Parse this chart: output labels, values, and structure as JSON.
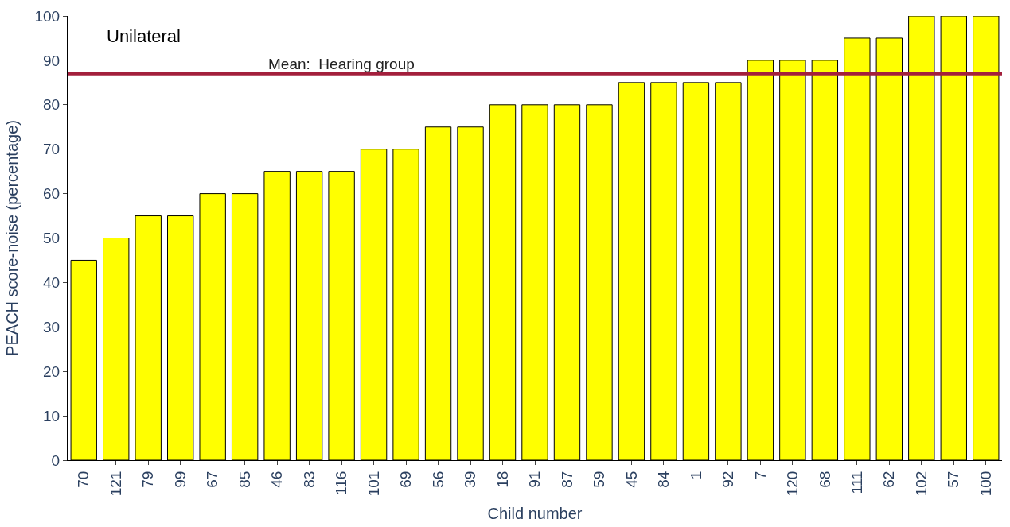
{
  "chart_data": {
    "type": "bar",
    "xlabel": "Child number",
    "ylabel": "PEACH score-noise (percentage)",
    "categories": [
      "70",
      "121",
      "79",
      "99",
      "67",
      "85",
      "46",
      "83",
      "116",
      "101",
      "69",
      "56",
      "39",
      "18",
      "91",
      "87",
      "59",
      "45",
      "84",
      "1",
      "92",
      "7",
      "120",
      "68",
      "111",
      "62",
      "102",
      "57",
      "100"
    ],
    "values": [
      45,
      50,
      55,
      55,
      60,
      60,
      65,
      65,
      65,
      70,
      70,
      75,
      75,
      80,
      80,
      80,
      80,
      85,
      85,
      85,
      85,
      90,
      90,
      90,
      95,
      95,
      100,
      100,
      100
    ],
    "color": "#ffff00",
    "ylim": [
      0,
      100
    ],
    "yticks": [
      0,
      10,
      20,
      30,
      40,
      50,
      60,
      70,
      80,
      90,
      100
    ],
    "ref_lines": [
      {
        "axis": "y",
        "value": 87,
        "label": "Mean:  Hearing group",
        "color": "#a31f3c"
      }
    ],
    "annotations": [
      "Unilateral"
    ]
  }
}
